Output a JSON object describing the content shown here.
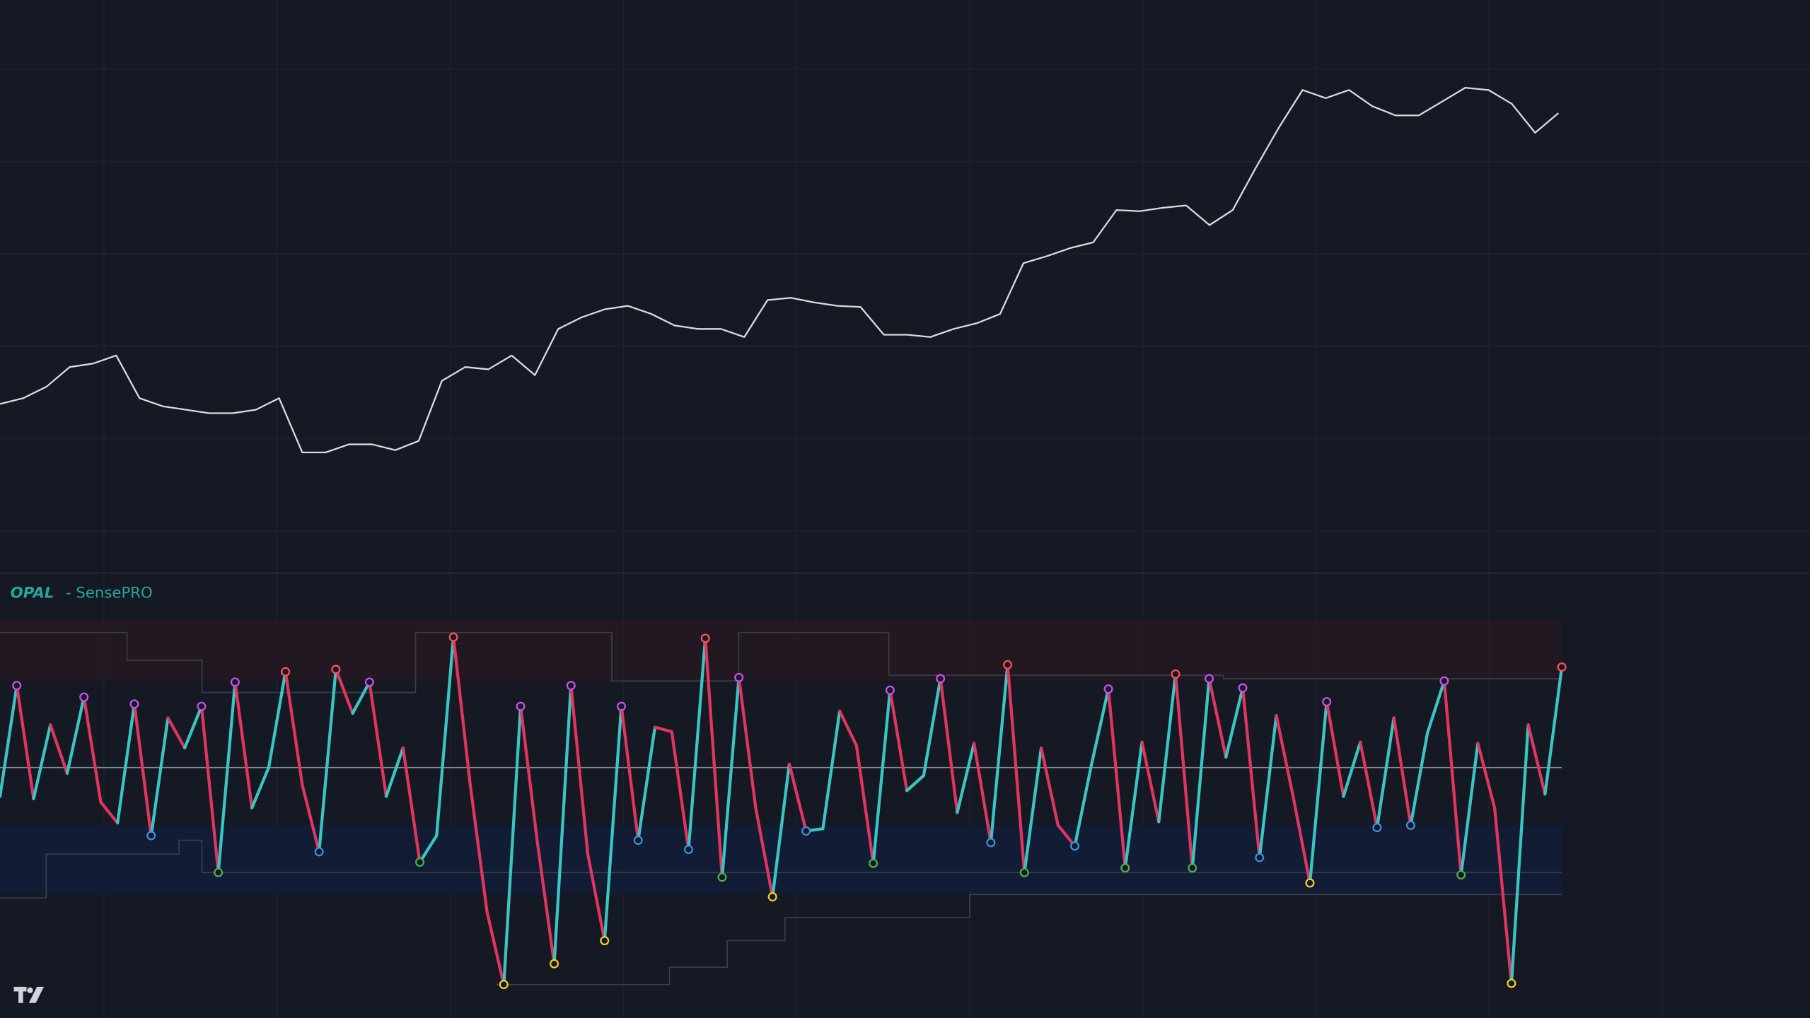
{
  "indicator": {
    "name": "OPAL",
    "title": "- SensePRO"
  },
  "price": {
    "values": [
      150,
      155,
      165,
      182,
      185,
      192,
      155,
      148,
      145,
      142,
      142,
      145,
      155,
      108,
      108,
      115,
      115,
      110,
      118,
      170,
      182,
      180,
      192,
      175,
      215,
      225,
      232,
      235,
      228,
      218,
      215,
      215,
      208,
      240,
      242,
      238,
      235,
      234,
      210,
      210,
      208,
      215,
      220,
      228,
      272,
      278,
      285,
      290,
      318,
      317,
      320,
      322,
      305,
      318,
      355,
      390,
      422,
      415,
      422,
      408,
      400,
      400,
      412,
      424,
      422,
      410,
      385,
      402
    ]
  },
  "oscillator": {
    "values": [
      -25,
      71,
      -27,
      37,
      -5,
      61,
      -30,
      -48,
      55,
      -59,
      43,
      17,
      53,
      -91,
      74,
      -35,
      0,
      83,
      -15,
      -73,
      85,
      47,
      74,
      -25,
      17,
      -82,
      -59,
      113,
      -15,
      -125,
      -188,
      53,
      -65,
      -170,
      71,
      -75,
      -150,
      53,
      -63,
      35,
      31,
      -71,
      112,
      -95,
      78,
      -35,
      -112,
      3,
      -55,
      -53,
      49,
      19,
      -83,
      67,
      -20,
      -7,
      77,
      -39,
      21,
      -65,
      89,
      -91,
      17,
      -50,
      -68,
      3,
      68,
      -87,
      22,
      -47,
      81,
      -87,
      77,
      9,
      69,
      -78,
      45,
      -25,
      -100,
      57,
      -25,
      22,
      -52,
      43,
      -50,
      30,
      75,
      -93,
      21,
      -35,
      -187,
      37,
      -23,
      87
    ]
  }
}
